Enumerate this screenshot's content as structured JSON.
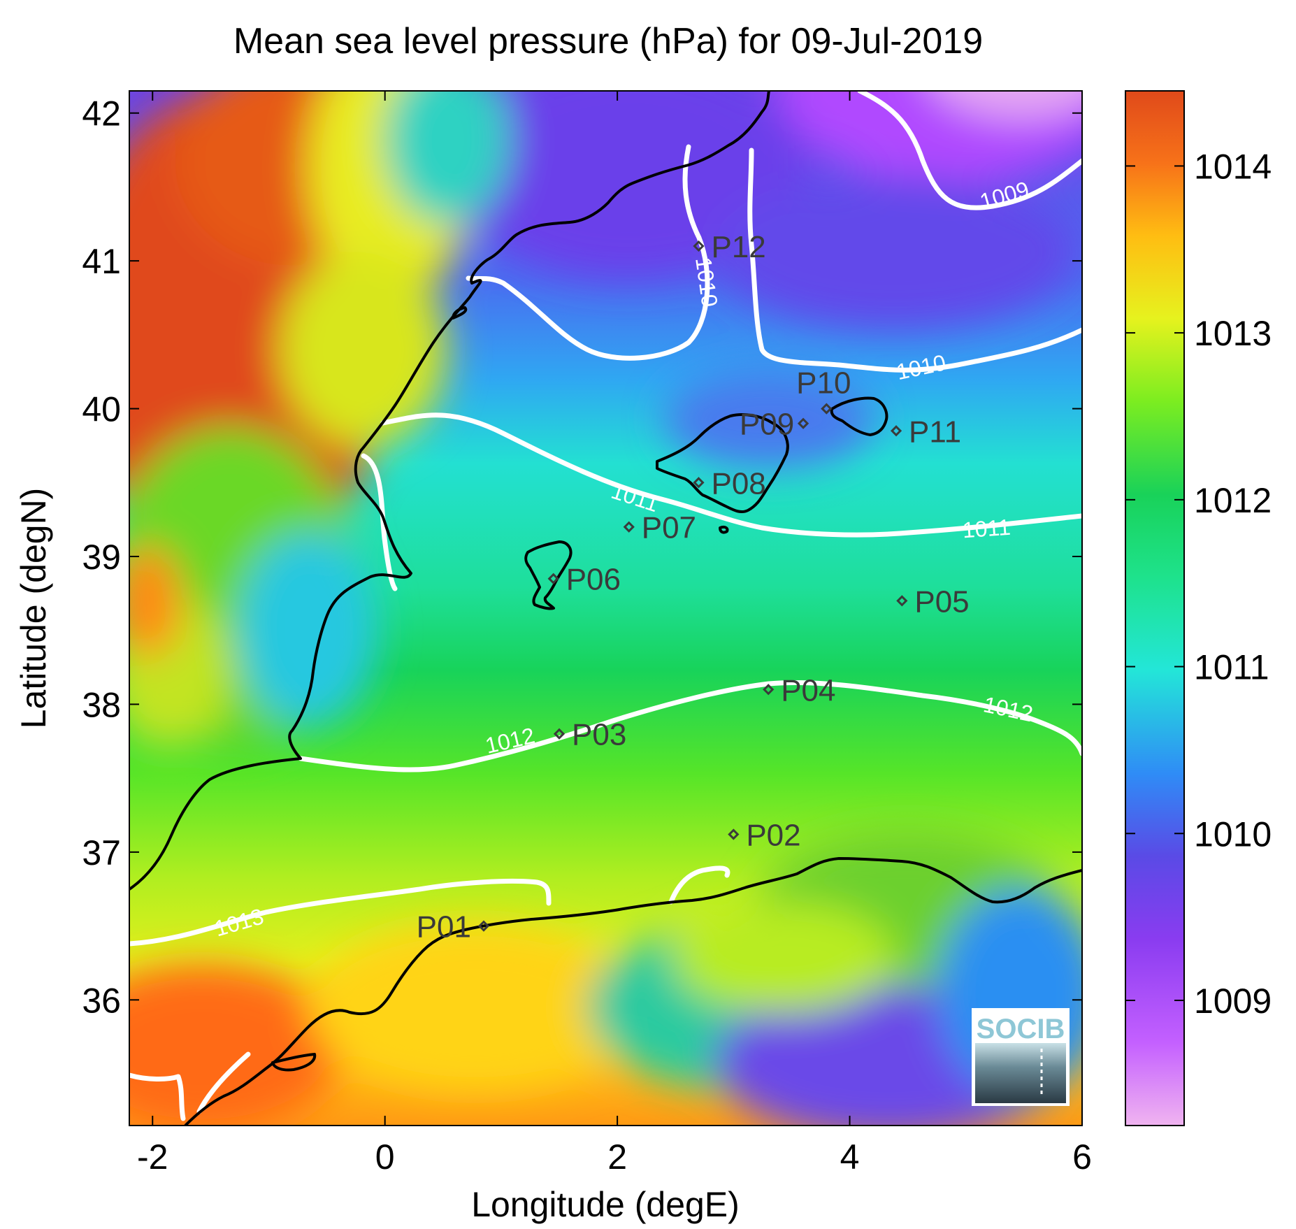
{
  "title": "Mean sea level pressure (hPa) for 09-Jul-2019",
  "xlabel": "Longitude (degE)",
  "ylabel": "Latitude (degN)",
  "logo": {
    "text": "SOCIB"
  },
  "chart_data": {
    "type": "heatmap",
    "title": "Mean sea level pressure (hPa) for 09-Jul-2019",
    "xlabel": "Longitude (degE)",
    "ylabel": "Latitude (degN)",
    "xlim": [
      -2.2,
      6.0
    ],
    "ylim": [
      35.15,
      42.15
    ],
    "x_ticks": [
      -2,
      0,
      2,
      4,
      6
    ],
    "y_ticks": [
      36,
      37,
      38,
      39,
      40,
      41,
      42
    ],
    "colorbar": {
      "range": [
        1008.25,
        1014.45
      ],
      "ticks": [
        1009,
        1010,
        1011,
        1012,
        1013,
        1014
      ],
      "colors": [
        "#f0b4f0",
        "#b048ff",
        "#5a4ae6",
        "#2f8cf6",
        "#23e6d8",
        "#19d259",
        "#7ced20",
        "#e6f21e",
        "#ffbd12",
        "#f77219",
        "#e04a1a"
      ]
    },
    "contour_labels": [
      {
        "text": "1009",
        "lon": 5.3,
        "lat": 41.4
      },
      {
        "text": "1010",
        "lon": 2.75,
        "lat": 40.85
      },
      {
        "text": "1010",
        "lon": 4.75,
        "lat": 40.3
      },
      {
        "text": "1011",
        "lon": 2.05,
        "lat": 39.35
      },
      {
        "text": "1011",
        "lon": 5.2,
        "lat": 39.15
      },
      {
        "text": "1012",
        "lon": 1.15,
        "lat": 37.73
      },
      {
        "text": "1012",
        "lon": 5.5,
        "lat": 37.9
      },
      {
        "text": "1013",
        "lon": -0.95,
        "lat": 36.45
      }
    ],
    "stations": [
      {
        "name": "P01",
        "lon": 0.85,
        "lat": 36.5
      },
      {
        "name": "P02",
        "lon": 3.0,
        "lat": 37.12
      },
      {
        "name": "P03",
        "lon": 1.5,
        "lat": 37.8
      },
      {
        "name": "P04",
        "lon": 3.3,
        "lat": 38.1
      },
      {
        "name": "P05",
        "lon": 4.45,
        "lat": 38.7
      },
      {
        "name": "P06",
        "lon": 1.45,
        "lat": 38.85
      },
      {
        "name": "P07",
        "lon": 2.1,
        "lat": 39.2
      },
      {
        "name": "P08",
        "lon": 2.7,
        "lat": 39.5
      },
      {
        "name": "P09",
        "lon": 3.6,
        "lat": 39.9
      },
      {
        "name": "P10",
        "lon": 3.8,
        "lat": 40.0
      },
      {
        "name": "P11",
        "lon": 4.4,
        "lat": 39.85
      },
      {
        "name": "P12",
        "lon": 2.7,
        "lat": 41.1
      }
    ]
  }
}
